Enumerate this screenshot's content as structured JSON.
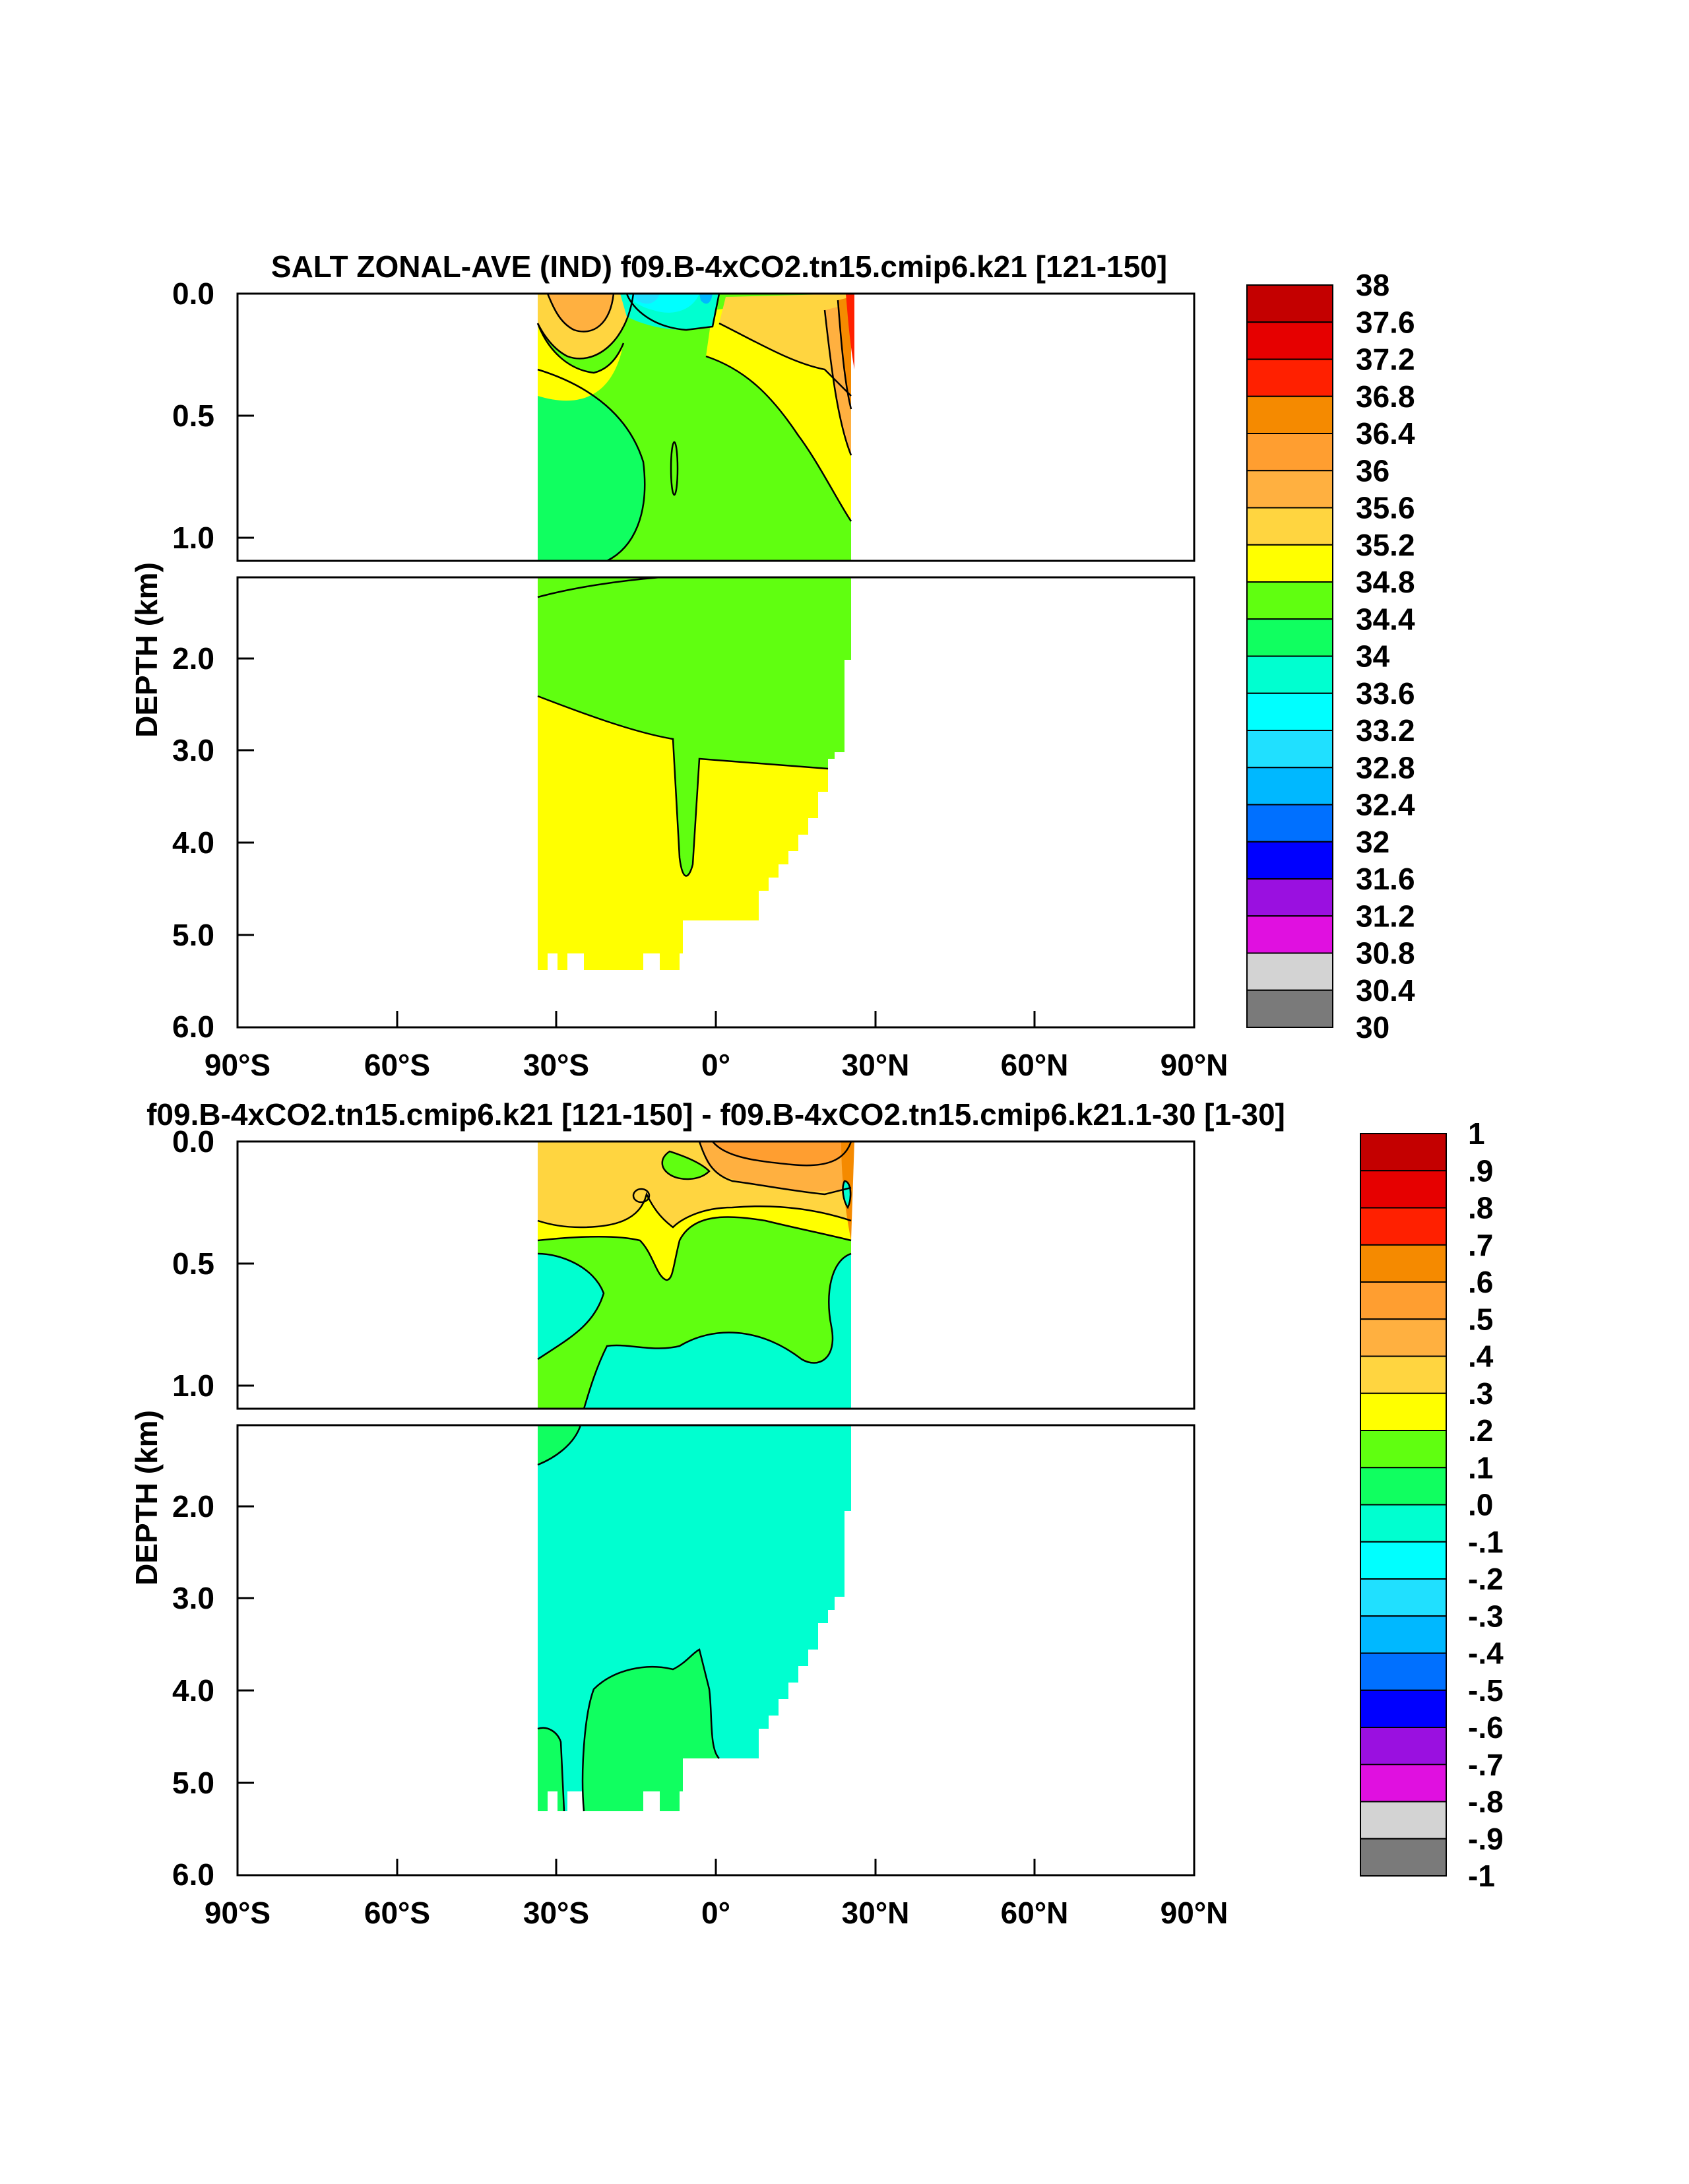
{
  "chart_data": [
    {
      "type": "heatmap",
      "title": "SALT ZONAL-AVE (IND) f09.B-4xCO2.tn15.cmip6.k21 [121-150]",
      "ylabel": "DEPTH (km)",
      "xlabel": "",
      "x_ticks": [
        "90°S",
        "60°S",
        "30°S",
        "0°",
        "30°N",
        "60°N",
        "90°N"
      ],
      "y_ticks_upper": [
        "0.0",
        "0.5",
        "1.0"
      ],
      "y_ticks_lower": [
        "2.0",
        "3.0",
        "4.0",
        "5.0",
        "6.0"
      ],
      "xlim": [
        -90,
        90
      ],
      "ylim_km": [
        0,
        6
      ],
      "colorbar_labels": [
        "38",
        "37.6",
        "37.2",
        "36.8",
        "36.4",
        "36",
        "35.6",
        "35.2",
        "34.8",
        "34.4",
        "34",
        "33.6",
        "33.2",
        "32.8",
        "32.4",
        "32",
        "31.6",
        "31.2",
        "30.8",
        "30.4",
        "30"
      ],
      "colorbar_colors": [
        "#c40000",
        "#e60000",
        "#ff2000",
        "#f58a00",
        "#ff9e30",
        "#ffb040",
        "#ffd540",
        "#ffff00",
        "#60ff10",
        "#10ff60",
        "#00ffd0",
        "#00ffff",
        "#20e0ff",
        "#00b8ff",
        "#0070ff",
        "#0000ff",
        "#9a10e0",
        "#e010e0",
        "#d3d3d3",
        "#7a7a7a"
      ]
    },
    {
      "type": "heatmap",
      "title": "f09.B-4xCO2.tn15.cmip6.k21 [121-150] - f09.B-4xCO2.tn15.cmip6.k21.1-30 [1-30]",
      "ylabel": "DEPTH (km)",
      "xlabel": "",
      "x_ticks": [
        "90°S",
        "60°S",
        "30°S",
        "0°",
        "30°N",
        "60°N",
        "90°N"
      ],
      "y_ticks_upper": [
        "0.0",
        "0.5",
        "1.0"
      ],
      "y_ticks_lower": [
        "2.0",
        "3.0",
        "4.0",
        "5.0",
        "6.0"
      ],
      "xlim": [
        -90,
        90
      ],
      "ylim_km": [
        0,
        6
      ],
      "colorbar_labels": [
        "1",
        ".9",
        ".8",
        ".7",
        ".6",
        ".5",
        ".4",
        ".3",
        ".2",
        ".1",
        ".0",
        "-.1",
        "-.2",
        "-.3",
        "-.4",
        "-.5",
        "-.6",
        "-.7",
        "-.8",
        "-.9",
        "-1"
      ],
      "colorbar_colors": [
        "#c40000",
        "#e60000",
        "#ff2000",
        "#f58a00",
        "#ff9e30",
        "#ffb040",
        "#ffd540",
        "#ffff00",
        "#60ff10",
        "#10ff60",
        "#00ffd0",
        "#00ffff",
        "#20e0ff",
        "#00b8ff",
        "#0070ff",
        "#0000ff",
        "#9a10e0",
        "#e010e0",
        "#d3d3d3",
        "#7a7a7a"
      ]
    }
  ]
}
